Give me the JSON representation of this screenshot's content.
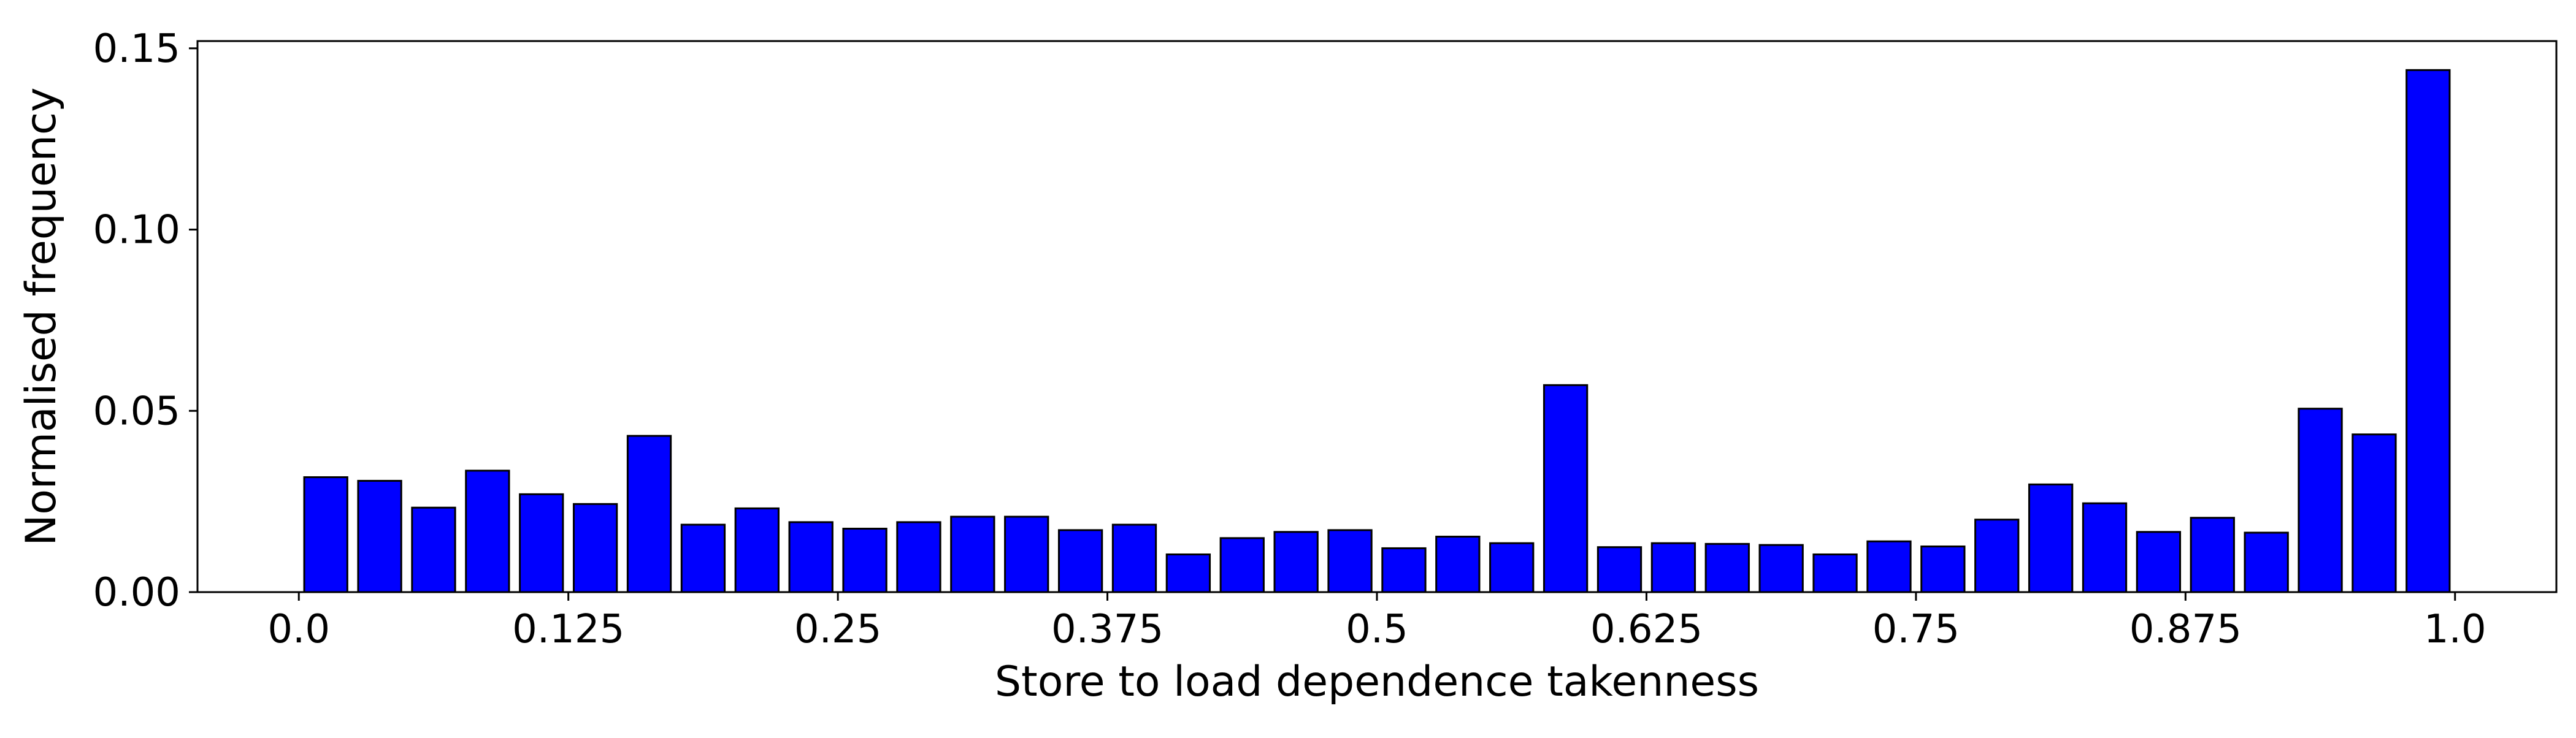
{
  "chart_data": {
    "type": "bar",
    "title": "",
    "xlabel": "Store to load dependence takenness",
    "ylabel": "Normalised frequency",
    "ylim": [
      0,
      0.152
    ],
    "xlim": [
      -0.047,
      1.047
    ],
    "grid": false,
    "legend": "none",
    "bar_color": "#0000ff",
    "edge_color": "#000000",
    "bar_width": 0.02,
    "x": [
      0.0125,
      0.0375,
      0.0625,
      0.0875,
      0.1125,
      0.1375,
      0.1625,
      0.1875,
      0.2125,
      0.2375,
      0.2625,
      0.2875,
      0.3125,
      0.3375,
      0.3625,
      0.3875,
      0.4125,
      0.4375,
      0.4625,
      0.4875,
      0.5125,
      0.5375,
      0.5625,
      0.5875,
      0.6125,
      0.6375,
      0.6625,
      0.6875,
      0.7125,
      0.7375,
      0.7625,
      0.7875,
      0.8125,
      0.8375,
      0.8625,
      0.8875,
      0.9125,
      0.9375,
      0.9625,
      0.9875
    ],
    "values": [
      0.0317,
      0.0307,
      0.0233,
      0.0335,
      0.027,
      0.0243,
      0.0431,
      0.0186,
      0.0231,
      0.0193,
      0.0175,
      0.0193,
      0.0208,
      0.0208,
      0.0171,
      0.0186,
      0.0104,
      0.0149,
      0.0166,
      0.0171,
      0.0121,
      0.0153,
      0.0135,
      0.0571,
      0.0124,
      0.0135,
      0.0133,
      0.013,
      0.0104,
      0.014,
      0.0126,
      0.02,
      0.0297,
      0.0245,
      0.0166,
      0.0205,
      0.0164,
      0.0506,
      0.0435,
      0.144
    ],
    "x_ticks": [
      {
        "value": 0.0,
        "label": "0.0"
      },
      {
        "value": 0.125,
        "label": "0.125"
      },
      {
        "value": 0.25,
        "label": "0.25"
      },
      {
        "value": 0.375,
        "label": "0.375"
      },
      {
        "value": 0.5,
        "label": "0.5"
      },
      {
        "value": 0.625,
        "label": "0.625"
      },
      {
        "value": 0.75,
        "label": "0.75"
      },
      {
        "value": 0.875,
        "label": "0.875"
      },
      {
        "value": 1.0,
        "label": "1.0"
      }
    ],
    "y_ticks": [
      {
        "value": 0.0,
        "label": "0.00"
      },
      {
        "value": 0.05,
        "label": "0.05"
      },
      {
        "value": 0.1,
        "label": "0.10"
      },
      {
        "value": 0.15,
        "label": "0.15"
      }
    ]
  }
}
